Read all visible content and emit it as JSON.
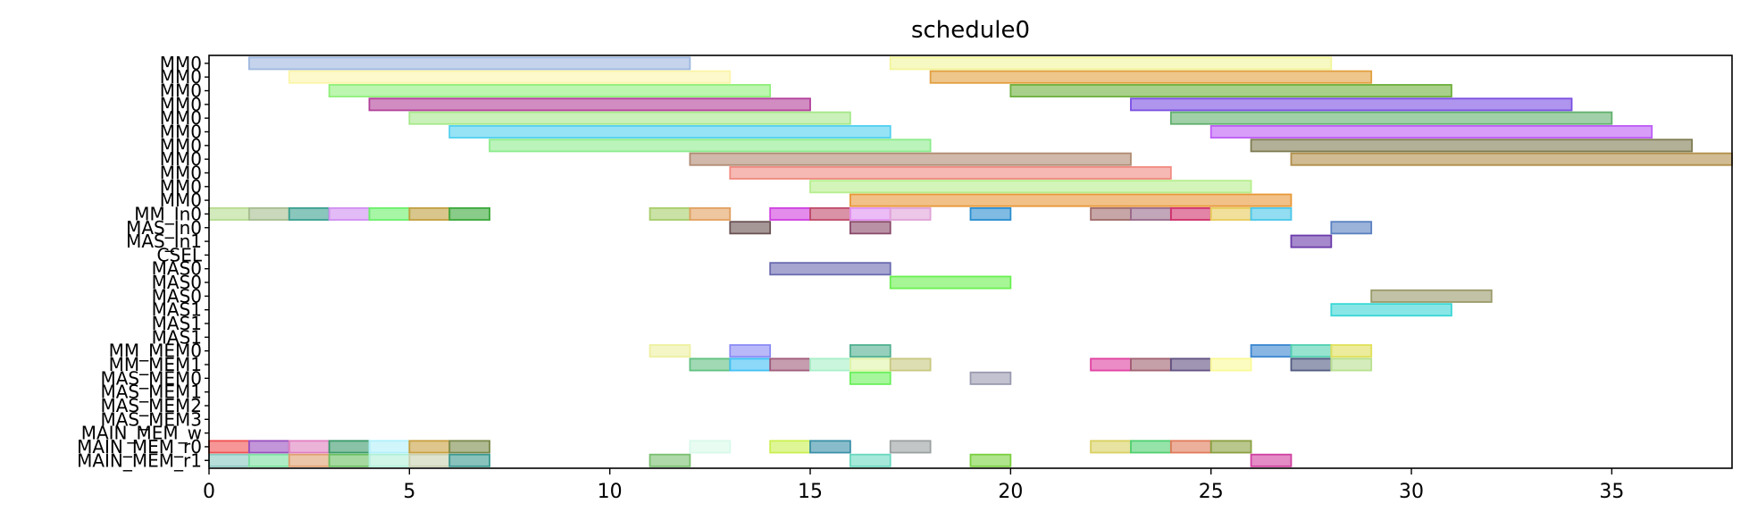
{
  "chart_data": {
    "type": "gantt",
    "title": "schedule0",
    "xlabel": "",
    "ylabel": "",
    "xlim": [
      0,
      38
    ],
    "x_ticks": [
      0,
      5,
      10,
      15,
      20,
      25,
      30,
      35
    ],
    "grid": false,
    "rows": [
      "MM0",
      "MM0",
      "MM0",
      "MM0",
      "MM0",
      "MM0",
      "MM0",
      "MM0",
      "MM0",
      "MM0",
      "MM0",
      "MM_In0",
      "MAS_In0",
      "MAS_In1",
      "CSEL",
      "MAS0",
      "MAS0",
      "MAS0",
      "MAS1",
      "MAS1",
      "MAS1",
      "MM_MEM0",
      "MM_MEM1",
      "MAS_MEM0",
      "MAS_MEM1",
      "MAS_MEM2",
      "MAS_MEM3",
      "MAIN_MEM_w",
      "MAIN_MEM_r0",
      "MAIN_MEM_r1"
    ],
    "tasks": [
      {
        "row": 0,
        "start": 1,
        "end": 12,
        "color": "#9fb8e0"
      },
      {
        "row": 0,
        "start": 17,
        "end": 28,
        "color": "#f2f59a"
      },
      {
        "row": 1,
        "start": 2,
        "end": 13,
        "color": "#fbf5a8"
      },
      {
        "row": 1,
        "start": 18,
        "end": 29,
        "color": "#e2a040"
      },
      {
        "row": 2,
        "start": 3,
        "end": 14,
        "color": "#8ff07a"
      },
      {
        "row": 2,
        "start": 20,
        "end": 31,
        "color": "#6eb03c"
      },
      {
        "row": 3,
        "start": 4,
        "end": 15,
        "color": "#b2409a"
      },
      {
        "row": 3,
        "start": 23,
        "end": 34,
        "color": "#7a4ee2"
      },
      {
        "row": 4,
        "start": 5,
        "end": 16,
        "color": "#a6e88a"
      },
      {
        "row": 4,
        "start": 24,
        "end": 35,
        "color": "#62b06e"
      },
      {
        "row": 5,
        "start": 6,
        "end": 17,
        "color": "#52d0f0"
      },
      {
        "row": 5,
        "start": 25,
        "end": 36,
        "color": "#bd5cf5"
      },
      {
        "row": 6,
        "start": 7,
        "end": 18,
        "color": "#8cec8c"
      },
      {
        "row": 6,
        "start": 26,
        "end": 37,
        "color": "#7e7c52"
      },
      {
        "row": 7,
        "start": 12,
        "end": 23,
        "color": "#b08a72"
      },
      {
        "row": 7,
        "start": 27,
        "end": 38,
        "color": "#b08e4a"
      },
      {
        "row": 8,
        "start": 13,
        "end": 24,
        "color": "#f08a80"
      },
      {
        "row": 9,
        "start": 15,
        "end": 26,
        "color": "#b6ee8c"
      },
      {
        "row": 10,
        "start": 16,
        "end": 27,
        "color": "#e89838"
      },
      {
        "row": 11,
        "start": 0,
        "end": 1,
        "color": "#b6dc90"
      },
      {
        "row": 11,
        "start": 1,
        "end": 2,
        "color": "#a6be90"
      },
      {
        "row": 11,
        "start": 2,
        "end": 3,
        "color": "#3aa090"
      },
      {
        "row": 11,
        "start": 3,
        "end": 4,
        "color": "#d08ef0"
      },
      {
        "row": 11,
        "start": 4,
        "end": 5,
        "color": "#6af06a"
      },
      {
        "row": 11,
        "start": 5,
        "end": 6,
        "color": "#c0a040"
      },
      {
        "row": 11,
        "start": 6,
        "end": 7,
        "color": "#3aa83a"
      },
      {
        "row": 11,
        "start": 11,
        "end": 12,
        "color": "#a6ce6a"
      },
      {
        "row": 11,
        "start": 12,
        "end": 13,
        "color": "#e2a060"
      },
      {
        "row": 11,
        "start": 14,
        "end": 15,
        "color": "#d040e0"
      },
      {
        "row": 11,
        "start": 15,
        "end": 16,
        "color": "#c04a6a"
      },
      {
        "row": 11,
        "start": 16,
        "end": 17,
        "color": "#e090f0"
      },
      {
        "row": 11,
        "start": 17,
        "end": 18,
        "color": "#e0a2d8"
      },
      {
        "row": 11,
        "start": 19,
        "end": 20,
        "color": "#2a8ed0"
      },
      {
        "row": 11,
        "start": 22,
        "end": 23,
        "color": "#a06a6a"
      },
      {
        "row": 11,
        "start": 23,
        "end": 24,
        "color": "#9a6a8a"
      },
      {
        "row": 11,
        "start": 24,
        "end": 25,
        "color": "#d0306a"
      },
      {
        "row": 11,
        "start": 25,
        "end": 26,
        "color": "#e8cc5a"
      },
      {
        "row": 11,
        "start": 26,
        "end": 27,
        "color": "#4ac6e8"
      },
      {
        "row": 12,
        "start": 13,
        "end": 14,
        "color": "#6a5252"
      },
      {
        "row": 12,
        "start": 16,
        "end": 17,
        "color": "#8a4a6a"
      },
      {
        "row": 12,
        "start": 28,
        "end": 29,
        "color": "#5a80c0"
      },
      {
        "row": 13,
        "start": 27,
        "end": 28,
        "color": "#6a3aaa"
      },
      {
        "row": 15,
        "start": 14,
        "end": 17,
        "color": "#6a6ab0"
      },
      {
        "row": 16,
        "start": 17,
        "end": 20,
        "color": "#6af050"
      },
      {
        "row": 17,
        "start": 29,
        "end": 32,
        "color": "#9a9a6a"
      },
      {
        "row": 18,
        "start": 28,
        "end": 31,
        "color": "#3ad6d6"
      },
      {
        "row": 21,
        "start": 11,
        "end": 12,
        "color": "#eef0a0"
      },
      {
        "row": 21,
        "start": 13,
        "end": 14,
        "color": "#8a8af5"
      },
      {
        "row": 21,
        "start": 16,
        "end": 17,
        "color": "#50b090"
      },
      {
        "row": 21,
        "start": 26,
        "end": 27,
        "color": "#3a86d0"
      },
      {
        "row": 21,
        "start": 27,
        "end": 28,
        "color": "#50d0b0"
      },
      {
        "row": 21,
        "start": 28,
        "end": 29,
        "color": "#e0e05a"
      },
      {
        "row": 22,
        "start": 12,
        "end": 13,
        "color": "#60c080"
      },
      {
        "row": 22,
        "start": 13,
        "end": 14,
        "color": "#40c0f5"
      },
      {
        "row": 22,
        "start": 14,
        "end": 15,
        "color": "#a05a7a"
      },
      {
        "row": 22,
        "start": 15,
        "end": 16,
        "color": "#a8f0c8"
      },
      {
        "row": 22,
        "start": 16,
        "end": 17,
        "color": "#e0f5a8"
      },
      {
        "row": 22,
        "start": 17,
        "end": 18,
        "color": "#c8c880"
      },
      {
        "row": 22,
        "start": 22,
        "end": 23,
        "color": "#e040a0"
      },
      {
        "row": 22,
        "start": 23,
        "end": 24,
        "color": "#a06070"
      },
      {
        "row": 22,
        "start": 24,
        "end": 25,
        "color": "#605080"
      },
      {
        "row": 22,
        "start": 25,
        "end": 26,
        "color": "#fafa98"
      },
      {
        "row": 22,
        "start": 27,
        "end": 28,
        "color": "#505a80"
      },
      {
        "row": 22,
        "start": 28,
        "end": 29,
        "color": "#b8e090"
      },
      {
        "row": 23,
        "start": 16,
        "end": 17,
        "color": "#6af05a"
      },
      {
        "row": 23,
        "start": 19,
        "end": 20,
        "color": "#9a9ab0"
      },
      {
        "row": 28,
        "start": 0,
        "end": 1,
        "color": "#f05050"
      },
      {
        "row": 28,
        "start": 1,
        "end": 2,
        "color": "#9a50c0"
      },
      {
        "row": 28,
        "start": 2,
        "end": 3,
        "color": "#e080c0"
      },
      {
        "row": 28,
        "start": 3,
        "end": 4,
        "color": "#3a9a6a"
      },
      {
        "row": 28,
        "start": 4,
        "end": 5,
        "color": "#b0f0fa"
      },
      {
        "row": 28,
        "start": 5,
        "end": 6,
        "color": "#c8a040"
      },
      {
        "row": 28,
        "start": 6,
        "end": 7,
        "color": "#7a8a4a"
      },
      {
        "row": 28,
        "start": 12,
        "end": 13,
        "color": "#d8faea"
      },
      {
        "row": 28,
        "start": 14,
        "end": 15,
        "color": "#caf050"
      },
      {
        "row": 28,
        "start": 15,
        "end": 16,
        "color": "#3a90a8"
      },
      {
        "row": 28,
        "start": 17,
        "end": 18,
        "color": "#9aa0a0"
      },
      {
        "row": 28,
        "start": 22,
        "end": 23,
        "color": "#d8d060"
      },
      {
        "row": 28,
        "start": 23,
        "end": 24,
        "color": "#50d070"
      },
      {
        "row": 28,
        "start": 24,
        "end": 25,
        "color": "#e07a5a"
      },
      {
        "row": 28,
        "start": 25,
        "end": 26,
        "color": "#8aa040"
      },
      {
        "row": 29,
        "start": 0,
        "end": 1,
        "color": "#88c8c0"
      },
      {
        "row": 29,
        "start": 1,
        "end": 2,
        "color": "#7ae0a0"
      },
      {
        "row": 29,
        "start": 2,
        "end": 3,
        "color": "#e0a070"
      },
      {
        "row": 29,
        "start": 3,
        "end": 4,
        "color": "#6ac060"
      },
      {
        "row": 29,
        "start": 4,
        "end": 5,
        "color": "#b0f0d8"
      },
      {
        "row": 29,
        "start": 5,
        "end": 6,
        "color": "#c8d0b0"
      },
      {
        "row": 29,
        "start": 6,
        "end": 7,
        "color": "#3a9a90"
      },
      {
        "row": 29,
        "start": 11,
        "end": 12,
        "color": "#7ac070"
      },
      {
        "row": 29,
        "start": 16,
        "end": 17,
        "color": "#6ad8c0"
      },
      {
        "row": 29,
        "start": 19,
        "end": 20,
        "color": "#7ad040"
      },
      {
        "row": 29,
        "start": 26,
        "end": 27,
        "color": "#d040a0"
      }
    ]
  }
}
